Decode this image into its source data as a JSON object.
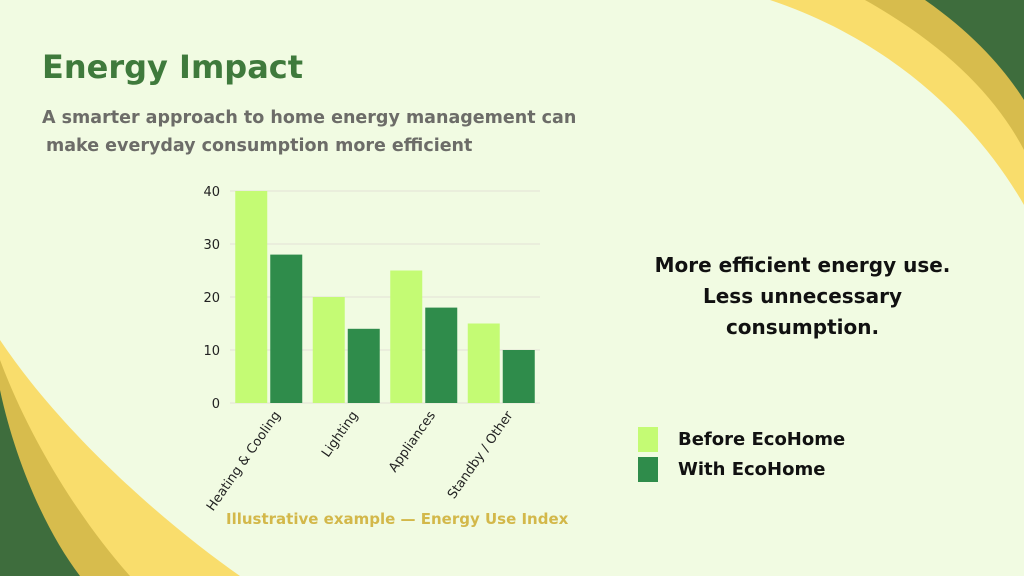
{
  "page": {
    "title": "Energy Impact",
    "subtitle_lines": [
      "A smarter approach to home energy management can",
      "make everyday consumption more efficient"
    ],
    "caption": "Illustrative example — Energy Use Index",
    "message_lines": [
      "More efficient energy use.",
      "Less unnecessary",
      "consumption."
    ]
  },
  "colors": {
    "background": "#f1fbe2",
    "accent_yellow": "#f9dd6c",
    "accent_gold": "#d7bc4d",
    "accent_green": "#3e6d3d"
  },
  "chart_data": {
    "type": "bar",
    "categories": [
      "Heating & Cooling",
      "Lighting",
      "Appliances",
      "Standby / Other"
    ],
    "series": [
      {
        "name": "Before EcoHome",
        "values": [
          40,
          20,
          25,
          15
        ],
        "color": "#c4fb74"
      },
      {
        "name": "With EcoHome",
        "values": [
          28,
          14,
          18,
          10
        ],
        "color": "#2f8c4b"
      }
    ],
    "ylim": [
      0,
      40
    ],
    "yticks": [
      0,
      10,
      20,
      30,
      40
    ],
    "grid": true,
    "legend": "right",
    "xlabel": "",
    "ylabel": "",
    "title": ""
  }
}
